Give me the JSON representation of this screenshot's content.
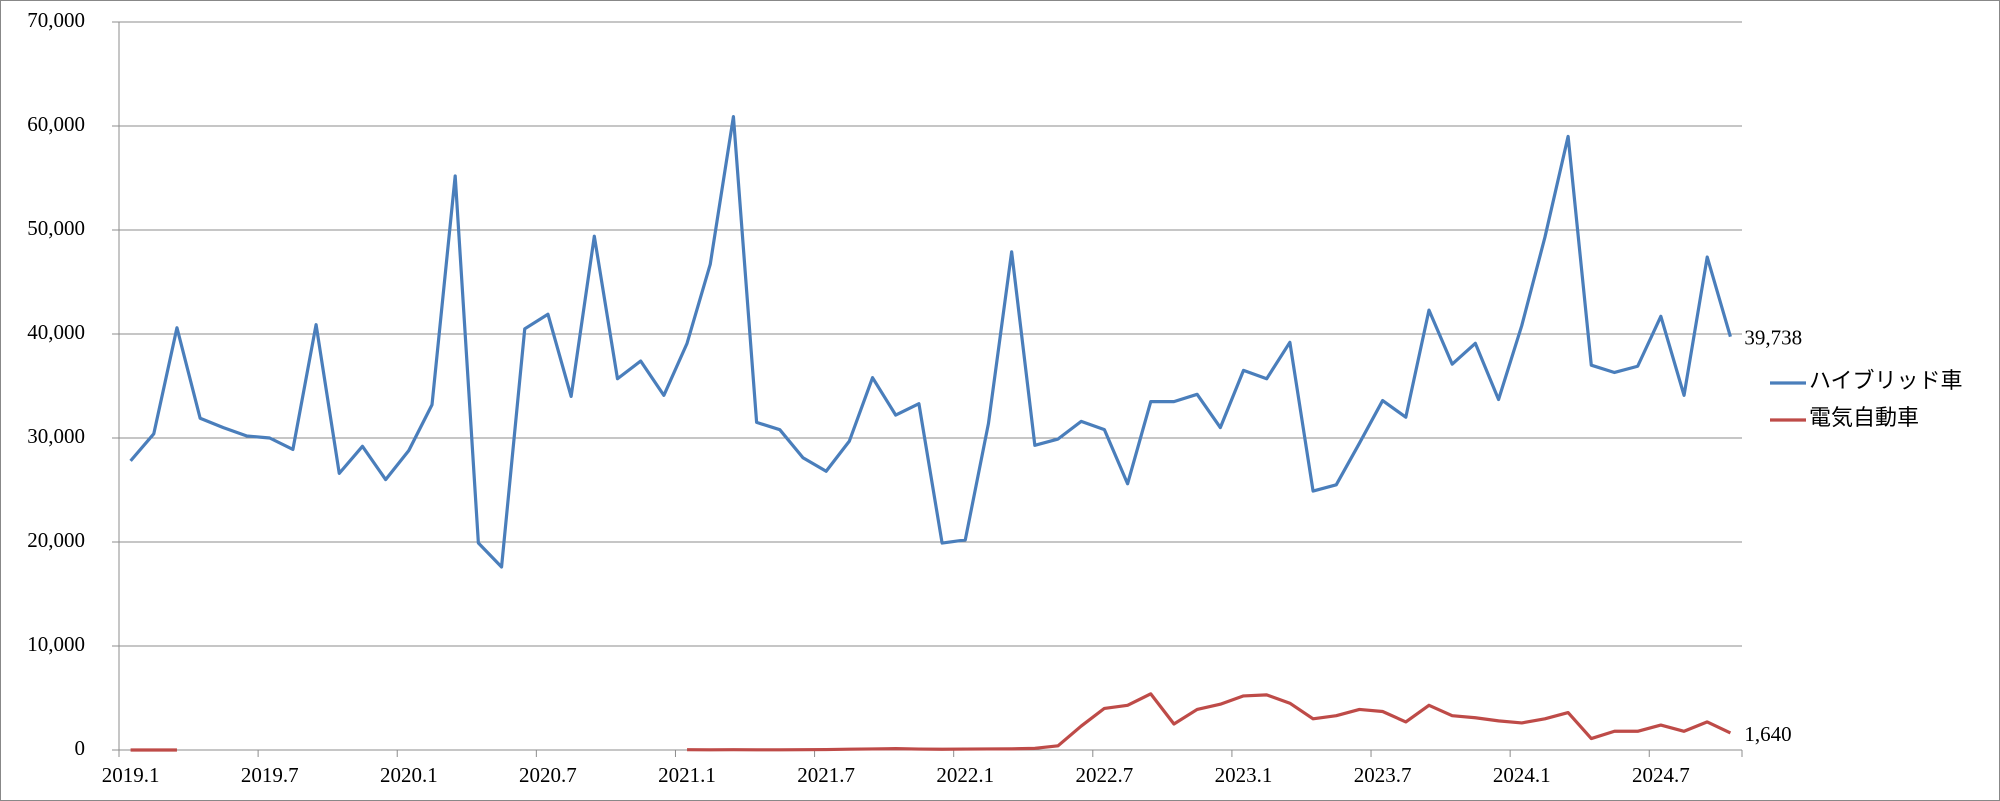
{
  "chart_data": {
    "type": "line",
    "categories": [
      "2019.1",
      null,
      null,
      null,
      null,
      null,
      "2019.7",
      null,
      null,
      null,
      null,
      null,
      "2020.1",
      null,
      null,
      null,
      null,
      null,
      "2020.7",
      null,
      null,
      null,
      null,
      null,
      "2021.1",
      null,
      null,
      null,
      null,
      null,
      "2021.7",
      null,
      null,
      null,
      null,
      null,
      "2022.1",
      null,
      null,
      null,
      null,
      null,
      "2022.7",
      null,
      null,
      null,
      null,
      null,
      "2023.1",
      null,
      null,
      null,
      null,
      null,
      "2023.7",
      null,
      null,
      null,
      null,
      null,
      "2024.1",
      null,
      null,
      null,
      null,
      null,
      "2024.7",
      null,
      null,
      null
    ],
    "series": [
      {
        "name": "ハイブリッド車",
        "color": "#4a7ebb",
        "values": [
          27800,
          30400,
          40600,
          31900,
          31000,
          30200,
          30000,
          28900,
          40900,
          26600,
          29200,
          26000,
          28800,
          33200,
          55200,
          19900,
          17600,
          40500,
          41900,
          34000,
          49400,
          35700,
          37400,
          34100,
          39100,
          46700,
          60900,
          31500,
          30800,
          28100,
          26800,
          29700,
          35800,
          32200,
          33300,
          19900,
          20200,
          31400,
          47900,
          29300,
          29900,
          31600,
          30800,
          25600,
          33500,
          33500,
          34200,
          31000,
          36500,
          35700,
          39200,
          24900,
          25500,
          29500,
          33600,
          32000,
          42300,
          37100,
          39100,
          33700,
          40800,
          49300,
          59000,
          37000,
          36300,
          36900,
          41700,
          34100,
          47400,
          39738
        ],
        "value_labels": [
          null,
          null,
          null,
          null,
          null,
          null,
          null,
          null,
          null,
          null,
          null,
          null,
          null,
          null,
          null,
          null,
          null,
          null,
          null,
          null,
          null,
          null,
          null,
          null,
          null,
          null,
          null,
          null,
          null,
          null,
          null,
          null,
          null,
          null,
          null,
          null,
          null,
          null,
          null,
          null,
          null,
          null,
          null,
          null,
          null,
          null,
          null,
          null,
          null,
          null,
          null,
          null,
          null,
          null,
          null,
          null,
          null,
          null,
          null,
          null,
          null,
          null,
          null,
          null,
          null,
          null,
          null,
          null,
          null,
          "39,738"
        ]
      },
      {
        "name": "電気自動車",
        "color": "#be4b48",
        "values": [
          0,
          0,
          0,
          null,
          null,
          null,
          null,
          null,
          null,
          null,
          null,
          null,
          null,
          null,
          null,
          null,
          null,
          null,
          null,
          null,
          null,
          null,
          null,
          null,
          30,
          20,
          30,
          20,
          20,
          30,
          40,
          80,
          100,
          130,
          90,
          70,
          90,
          100,
          110,
          160,
          400,
          2300,
          4000,
          4300,
          5400,
          2500,
          3900,
          4400,
          5200,
          5300,
          4500,
          3000,
          3300,
          3900,
          3700,
          2700,
          4300,
          3300,
          3100,
          2800,
          2600,
          3000,
          3600,
          1100,
          1800,
          1800,
          2400,
          1800,
          2700,
          1640
        ],
        "value_labels": [
          null,
          null,
          null,
          null,
          null,
          null,
          null,
          null,
          null,
          null,
          null,
          null,
          null,
          null,
          null,
          null,
          null,
          null,
          null,
          null,
          null,
          null,
          null,
          null,
          null,
          null,
          null,
          null,
          null,
          null,
          null,
          null,
          null,
          null,
          null,
          null,
          null,
          null,
          null,
          null,
          null,
          null,
          null,
          null,
          null,
          null,
          null,
          null,
          null,
          null,
          null,
          null,
          null,
          null,
          null,
          null,
          null,
          null,
          null,
          null,
          null,
          null,
          null,
          null,
          null,
          null,
          null,
          null,
          null,
          "1,640"
        ]
      }
    ],
    "ylim": [
      0,
      70000
    ],
    "yticks": [
      0,
      {
        "value": 10000,
        "label": "10,000"
      },
      {
        "value": 20000,
        "label": "20,000"
      },
      {
        "value": 30000,
        "label": "30,000"
      },
      {
        "value": 40000,
        "label": "40,000"
      },
      {
        "value": 50000,
        "label": "50,000"
      },
      {
        "value": 60000,
        "label": "60,000"
      },
      {
        "value": 70000,
        "label": "70,000"
      }
    ],
    "grid": true,
    "legend": "right"
  }
}
